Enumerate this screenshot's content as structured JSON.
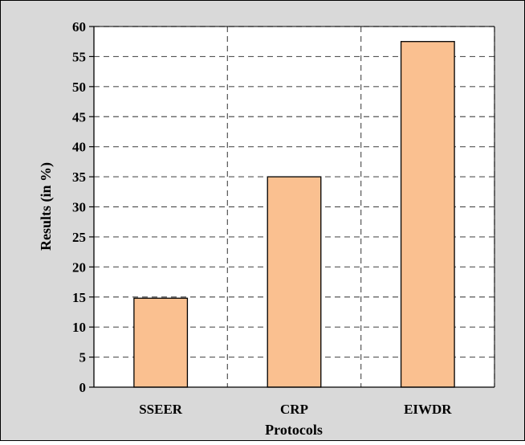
{
  "chart_data": {
    "type": "bar",
    "categories": [
      "SSEER",
      "CRP",
      "EIWDR"
    ],
    "values": [
      14.8,
      35.0,
      57.5
    ],
    "xlabel": "Protocols",
    "ylabel": "Results (in %)",
    "ylim": [
      0,
      60
    ],
    "yticks": [
      0,
      5,
      10,
      15,
      20,
      25,
      30,
      35,
      40,
      45,
      50,
      55,
      60
    ],
    "grid": true,
    "grid_style": "dashed",
    "legend": "none",
    "colors": {
      "bar_fill": "#FAC090",
      "bar_stroke": "#000000",
      "plot_background": "#FFFFFF",
      "chart_background": "#D9D9D9",
      "grid": "#555555"
    }
  }
}
